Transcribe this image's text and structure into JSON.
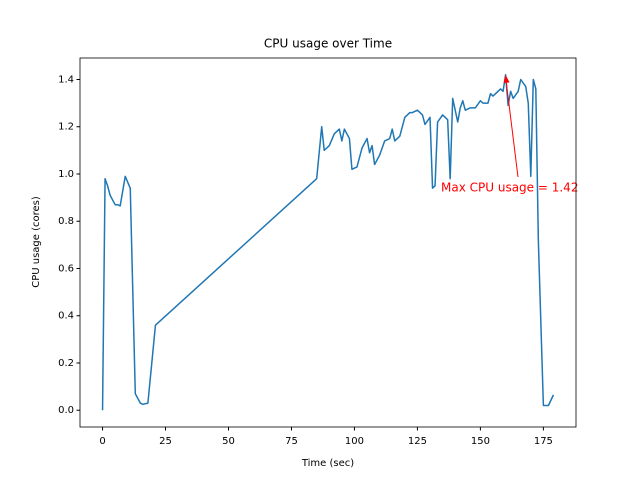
{
  "chart_data": {
    "type": "line",
    "title": "CPU usage over Time",
    "xlabel": "Time (sec)",
    "ylabel": "CPU usage (cores)",
    "annotation": "Max CPU usage = 1.42",
    "annotation_color": "#ff0000",
    "series": [
      {
        "name": "CPU usage",
        "color": "#1f77b4",
        "x": [
          0,
          1,
          2,
          3,
          5,
          6,
          7,
          9,
          11,
          13,
          15,
          16,
          18,
          19,
          21,
          85,
          87,
          88,
          90,
          92,
          94,
          95,
          96,
          98,
          99,
          101,
          103,
          105,
          106,
          107,
          108,
          110,
          112,
          114,
          115,
          116,
          118,
          120,
          122,
          123,
          125,
          127,
          128,
          130,
          131,
          132,
          133,
          135,
          137,
          138,
          139,
          141,
          142,
          143,
          144,
          146,
          148,
          150,
          151,
          153,
          154,
          155,
          157,
          158,
          159,
          160,
          161,
          162,
          163,
          165,
          166,
          168,
          169,
          170,
          171,
          172,
          173,
          175,
          177,
          179
        ],
        "values": [
          0.0,
          0.98,
          0.95,
          0.91,
          0.87,
          0.87,
          0.865,
          0.99,
          0.94,
          0.07,
          0.03,
          0.025,
          0.03,
          0.14,
          0.36,
          0.98,
          1.2,
          1.1,
          1.12,
          1.17,
          1.19,
          1.14,
          1.19,
          1.15,
          1.02,
          1.03,
          1.11,
          1.15,
          1.09,
          1.12,
          1.04,
          1.08,
          1.14,
          1.15,
          1.19,
          1.14,
          1.16,
          1.24,
          1.26,
          1.26,
          1.27,
          1.25,
          1.21,
          1.24,
          0.94,
          0.95,
          1.22,
          1.25,
          1.23,
          0.98,
          1.32,
          1.22,
          1.28,
          1.31,
          1.27,
          1.28,
          1.28,
          1.31,
          1.3,
          1.3,
          1.34,
          1.33,
          1.35,
          1.36,
          1.35,
          1.42,
          1.29,
          1.35,
          1.32,
          1.35,
          1.4,
          1.37,
          1.3,
          0.99,
          1.4,
          1.36,
          0.72,
          0.02,
          0.02,
          0.065
        ]
      }
    ],
    "xlim": [
      -8.95,
      187.95
    ],
    "xticks": [
      0,
      25,
      50,
      75,
      100,
      125,
      150,
      175
    ],
    "ylim": [
      -0.071,
      1.491
    ],
    "yticks": [
      {
        "value": 0,
        "label": "0.0"
      },
      0.2,
      0.4,
      0.6,
      0.8,
      {
        "value": 1,
        "label": "1.0"
      },
      1.2,
      1.4
    ]
  }
}
